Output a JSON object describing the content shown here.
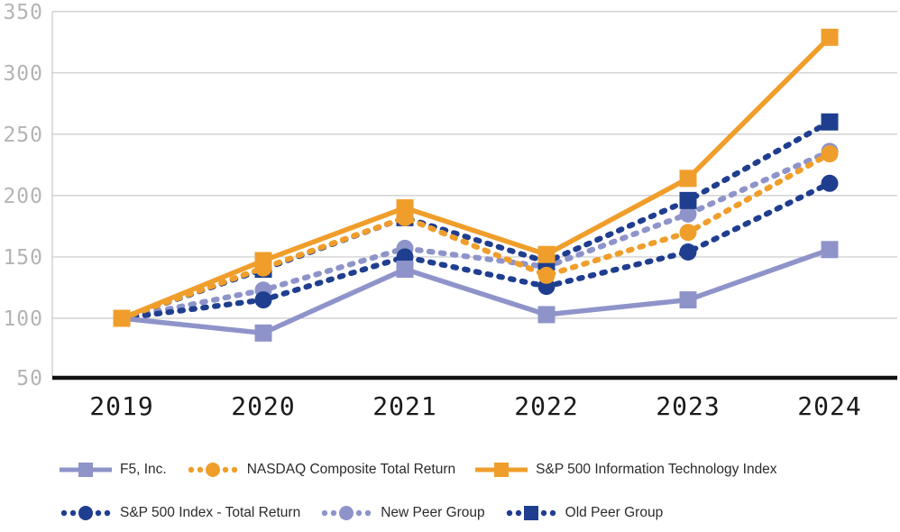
{
  "chart_data": {
    "type": "line",
    "title": "",
    "xlabel": "",
    "ylabel": "",
    "categories": [
      "2019",
      "2020",
      "2021",
      "2022",
      "2023",
      "2024"
    ],
    "ylim": [
      50,
      350
    ],
    "yticks": [
      50,
      100,
      150,
      200,
      250,
      300,
      350
    ],
    "grid": true,
    "legend_position": "bottom",
    "series": [
      {
        "name": "F5, Inc.",
        "color": "#8E94C9",
        "line": "solid",
        "marker": "square",
        "values": [
          100,
          88,
          140,
          103,
          115,
          156
        ]
      },
      {
        "name": "NASDAQ Composite Total Return",
        "color": "#F09E2B",
        "line": "dotted",
        "marker": "circle",
        "values": [
          100,
          141,
          182,
          135,
          170,
          234
        ]
      },
      {
        "name": "S&P 500 Information Technology Index",
        "color": "#F09E2B",
        "line": "solid",
        "marker": "square",
        "values": [
          100,
          147,
          190,
          152,
          214,
          329
        ]
      },
      {
        "name": "S&P 500 Index - Total Return",
        "color": "#1F3E8F",
        "line": "dotted",
        "marker": "circle",
        "values": [
          100,
          115,
          150,
          126,
          154,
          210
        ]
      },
      {
        "name": "New Peer Group",
        "color": "#8E94C9",
        "line": "dotted",
        "marker": "circle",
        "values": [
          100,
          123,
          157,
          142,
          185,
          236
        ]
      },
      {
        "name": "Old Peer Group",
        "color": "#1F3E8F",
        "line": "dotted",
        "marker": "square",
        "values": [
          100,
          140,
          182,
          146,
          196,
          260
        ]
      }
    ],
    "legend_rows": [
      [
        0,
        1,
        2
      ],
      [
        3,
        4,
        5
      ]
    ],
    "colors": {
      "gridline": "#c9c9c9",
      "axis": "#111111",
      "y_tick_label": "#b4b4b7",
      "x_tick_label": "#1a1a1a"
    }
  }
}
